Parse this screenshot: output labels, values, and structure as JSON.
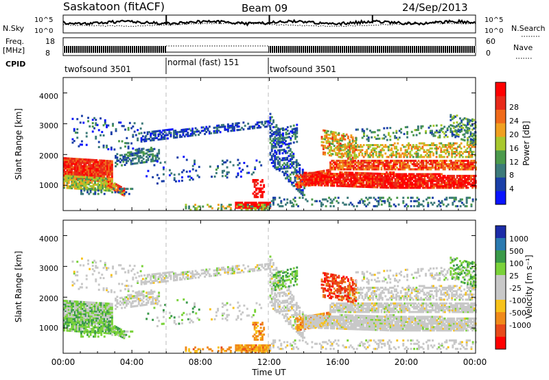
{
  "header": {
    "station": "Saskatoon (fitACF)",
    "beam": "Beam 09",
    "date": "24/Sep/2013"
  },
  "noise_panel": {
    "left_label": "N.Sky",
    "right_label": "N.Search",
    "left_ticks": [
      "10^5",
      "10^0"
    ],
    "right_ticks": [
      "10^5",
      "10^0"
    ]
  },
  "freq_panel": {
    "left_label_1": "Freq.",
    "left_label_2": "[MHz]",
    "left_ticks": [
      "18",
      "8"
    ],
    "right_label": "Nave",
    "right_ticks": [
      "60",
      "0"
    ]
  },
  "cpid": {
    "label": "CPID",
    "segments": [
      {
        "name": "twofsound 3501",
        "start_hour": 0,
        "end_hour": 6
      },
      {
        "name": "normal (fast) 151",
        "start_hour": 6,
        "end_hour": 12
      },
      {
        "name": "twofsound 3501",
        "start_hour": 12,
        "end_hour": 24
      }
    ]
  },
  "x_axis": {
    "label": "Time UT",
    "ticks": [
      "00:00",
      "04:00",
      "08:00",
      "12:00",
      "16:00",
      "20:00",
      "00:00"
    ],
    "range_hours": [
      0,
      24
    ]
  },
  "power_panel": {
    "ylabel": "Slant Range [km]",
    "yticks": [
      "1000",
      "2000",
      "3000",
      "4000"
    ],
    "colorbar_label": "Power [dB]",
    "colorbar_ticks": [
      "4",
      "8",
      "12",
      "16",
      "20",
      "24",
      "28"
    ]
  },
  "velocity_panel": {
    "ylabel": "Slant Range [km]",
    "yticks": [
      "1000",
      "2000",
      "3000",
      "4000"
    ],
    "colorbar_label": "Velocity [m s⁻¹]",
    "colorbar_ticks": [
      "1000",
      "500",
      "100",
      "25",
      "-25",
      "-100",
      "-500",
      "-1000"
    ]
  },
  "chart_data": [
    {
      "type": "heatmap",
      "name": "Power",
      "xlabel": "Time UT",
      "ylabel": "Slant Range [km]",
      "xlim_hours": [
        0,
        24
      ],
      "ylim_km": [
        180,
        4500
      ],
      "colorbar": {
        "label": "Power [dB]",
        "ticks": [
          4,
          8,
          12,
          16,
          20,
          24,
          28
        ]
      },
      "colors": [
        "#0a14ff",
        "#1a3fa8",
        "#3c7a7a",
        "#4c9a4c",
        "#a8c82e",
        "#f0a020",
        "#f06a1a",
        "#e82a1a",
        "#ff0000"
      ]
    },
    {
      "type": "heatmap",
      "name": "Velocity",
      "xlabel": "Time UT",
      "ylabel": "Slant Range [km]",
      "xlim_hours": [
        0,
        24
      ],
      "ylim_km": [
        180,
        4500
      ],
      "colorbar": {
        "label": "Velocity [m s-1]",
        "ticks": [
          1000,
          500,
          100,
          25,
          -25,
          -100,
          -500,
          -1000
        ]
      },
      "colors": [
        "#1c2ca8",
        "#2a7ab0",
        "#3a9a4a",
        "#7ad23a",
        "#c8c8c8",
        "#c8c8c8",
        "#f7c21a",
        "#f08a1a",
        "#e84a1a",
        "#ff0000"
      ]
    }
  ]
}
